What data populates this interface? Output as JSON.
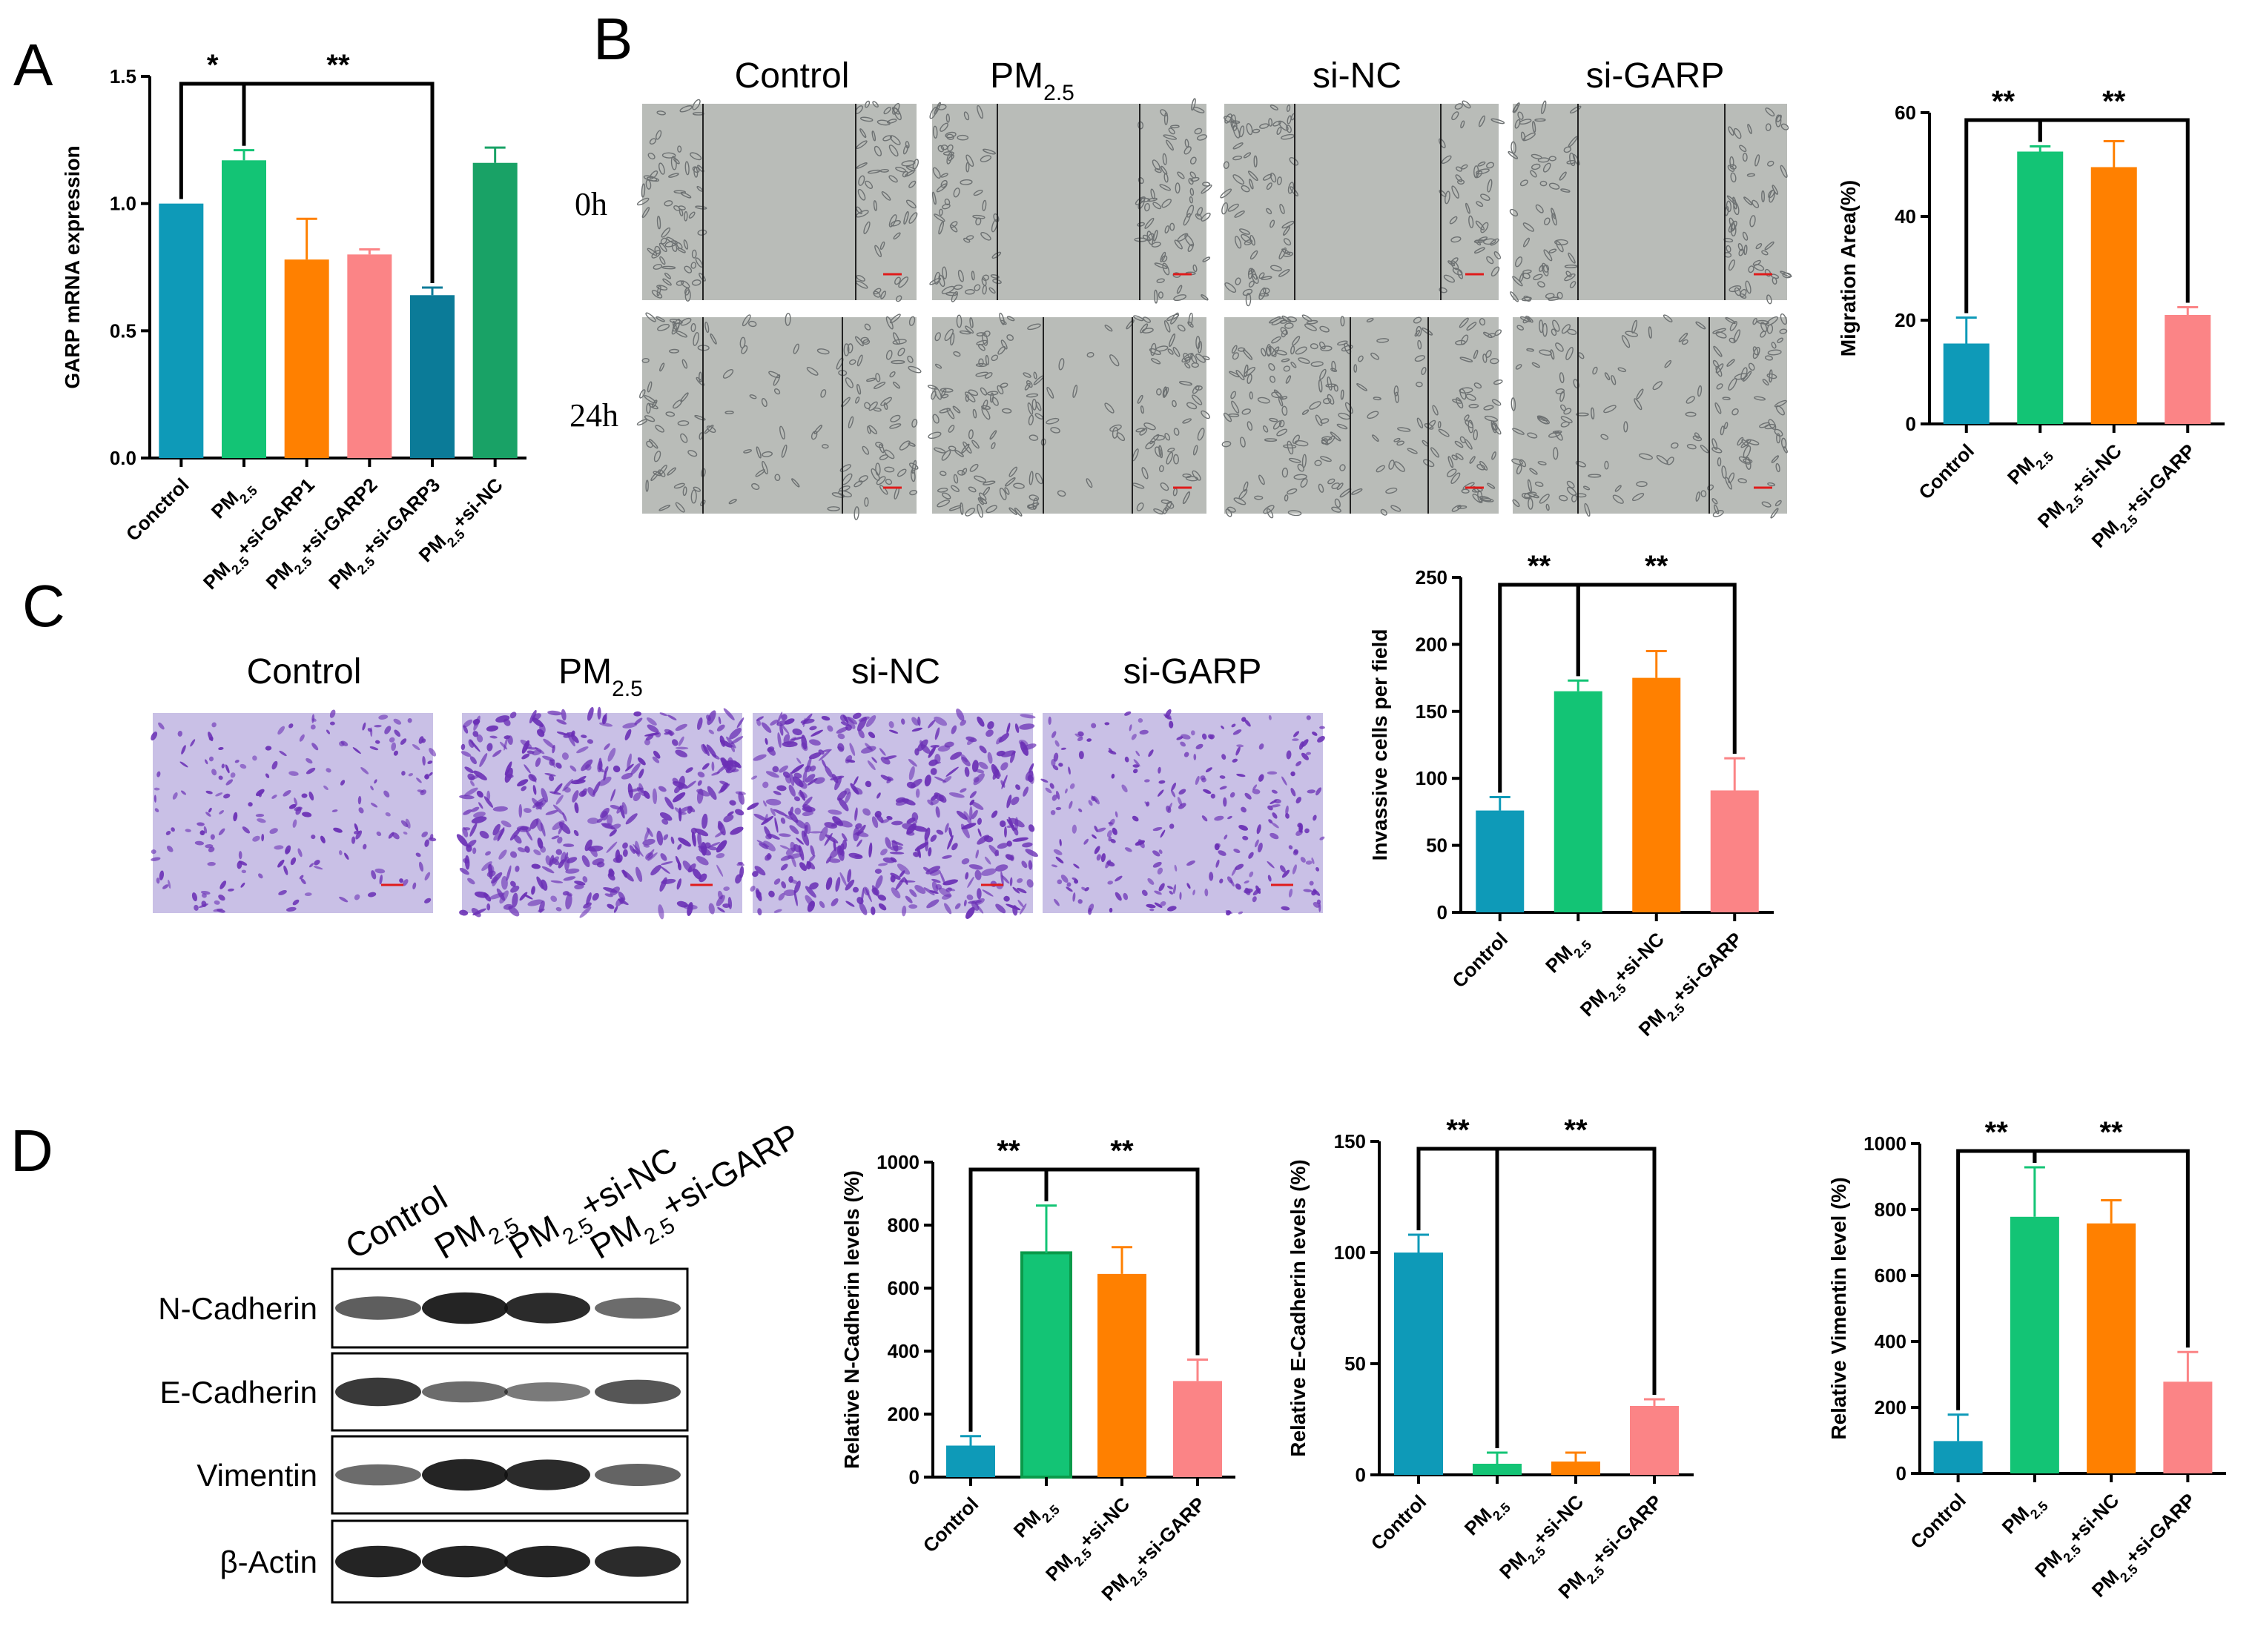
{
  "colors": {
    "control": "#0e9ab8",
    "pm": "#13c475",
    "orange": "#ff8000",
    "pink": "#fb8486",
    "dark_teal": "#0b7b98",
    "dark_green": "#19a266",
    "scratch_bg": "#b9bcb8",
    "transwell_bg": "#c9c0e6",
    "transwell_cell": "#6a2fb5"
  },
  "panel_letters": [
    "A",
    "B",
    "C",
    "D"
  ],
  "panel_b": {
    "columns": [
      "Control",
      "PM2.5",
      "si-NC",
      "si-GARP"
    ],
    "rows": [
      "0h",
      "24h"
    ]
  },
  "panel_c": {
    "columns": [
      "Control",
      "PM2.5",
      "si-NC",
      "si-GARP"
    ]
  },
  "panel_d_blot": {
    "lanes": [
      "Control",
      "PM2.5",
      "PM2.5+si-NC",
      "PM2.5+si-GARP"
    ],
    "proteins": [
      "N-Cadherin",
      "E-Cadherin",
      "Vimentin",
      "β-Actin"
    ]
  },
  "chart_data": [
    {
      "id": "A",
      "type": "bar",
      "ylabel": "GARP mRNA expression",
      "ylim": [
        0,
        1.5
      ],
      "yticks": [
        "0.0",
        "0.5",
        "1.0",
        "1.5"
      ],
      "categories": [
        "Conctrol",
        "PM2.5",
        "PM2.5+si-GARP1",
        "PM2.5+si-GARP2",
        "PM2.5+si-GARP3",
        "PM2.5+si-NC"
      ],
      "values": [
        1.0,
        1.17,
        0.78,
        0.8,
        0.64,
        1.16
      ],
      "errors": [
        0.0,
        0.04,
        0.16,
        0.02,
        0.03,
        0.06
      ],
      "significance": [
        {
          "from": 0,
          "to": 1,
          "label": "*"
        },
        {
          "from": 1,
          "to": 4,
          "label": "**"
        }
      ]
    },
    {
      "id": "B",
      "type": "bar",
      "ylabel": "Migration Area(%)",
      "ylim": [
        0,
        60
      ],
      "yticks": [
        "0",
        "20",
        "40",
        "60"
      ],
      "categories": [
        "Control",
        "PM2.5",
        "PM2.5+si-NC",
        "PM2.5+si-GARP"
      ],
      "values": [
        15.5,
        52.5,
        49.5,
        21.0
      ],
      "errors": [
        5.0,
        1.0,
        5.0,
        1.5
      ],
      "significance": [
        {
          "from": 0,
          "to": 1,
          "label": "**"
        },
        {
          "from": 1,
          "to": 3,
          "label": "**"
        }
      ]
    },
    {
      "id": "C",
      "type": "bar",
      "ylabel": "Invassive cells per field",
      "ylim": [
        0,
        250
      ],
      "yticks": [
        "0",
        "50",
        "100",
        "150",
        "200",
        "250"
      ],
      "categories": [
        "Control",
        "PM2.5",
        "PM2.5+si-NC",
        "PM2.5+si-GARP"
      ],
      "values": [
        76,
        165,
        175,
        91
      ],
      "errors": [
        10,
        8,
        20,
        24
      ],
      "significance": [
        {
          "from": 0,
          "to": 1,
          "label": "**"
        },
        {
          "from": 1,
          "to": 3,
          "label": "**"
        }
      ]
    },
    {
      "id": "D1",
      "type": "bar",
      "ylabel": "Relative N-Cadherin levels (%)",
      "ylim": [
        0,
        1000
      ],
      "yticks": [
        "0",
        "200",
        "400",
        "600",
        "800",
        "1000"
      ],
      "categories": [
        "Control",
        "PM2.5",
        "PM2.5+si-NC",
        "PM2.5+si-GARP"
      ],
      "values": [
        100,
        712,
        645,
        305
      ],
      "errors": [
        30,
        150,
        85,
        68
      ],
      "significance": [
        {
          "from": 0,
          "to": 1,
          "label": "**"
        },
        {
          "from": 1,
          "to": 3,
          "label": "**"
        }
      ]
    },
    {
      "id": "D2",
      "type": "bar",
      "ylabel": "Relative E-Cadherin levels (%)",
      "ylim": [
        0,
        150
      ],
      "yticks": [
        "0",
        "50",
        "100",
        "150"
      ],
      "categories": [
        "Control",
        "PM2.5",
        "PM2.5+si-NC",
        "PM2.5+si-GARP"
      ],
      "values": [
        100,
        5,
        6,
        31
      ],
      "errors": [
        8,
        5,
        4,
        3
      ],
      "significance": [
        {
          "from": 0,
          "to": 1,
          "label": "**"
        },
        {
          "from": 1,
          "to": 3,
          "label": "**"
        }
      ]
    },
    {
      "id": "D3",
      "type": "bar",
      "ylabel": "Relative Vimentin level (%)",
      "ylim": [
        0,
        1000
      ],
      "yticks": [
        "0",
        "200",
        "400",
        "600",
        "800",
        "1000"
      ],
      "categories": [
        "Control",
        "PM2.5",
        "PM2.5+si-NC",
        "PM2.5+si-GARP"
      ],
      "values": [
        98,
        778,
        758,
        278
      ],
      "errors": [
        80,
        150,
        70,
        90
      ],
      "significance": [
        {
          "from": 0,
          "to": 1,
          "label": "**"
        },
        {
          "from": 1,
          "to": 3,
          "label": "**"
        }
      ]
    }
  ]
}
